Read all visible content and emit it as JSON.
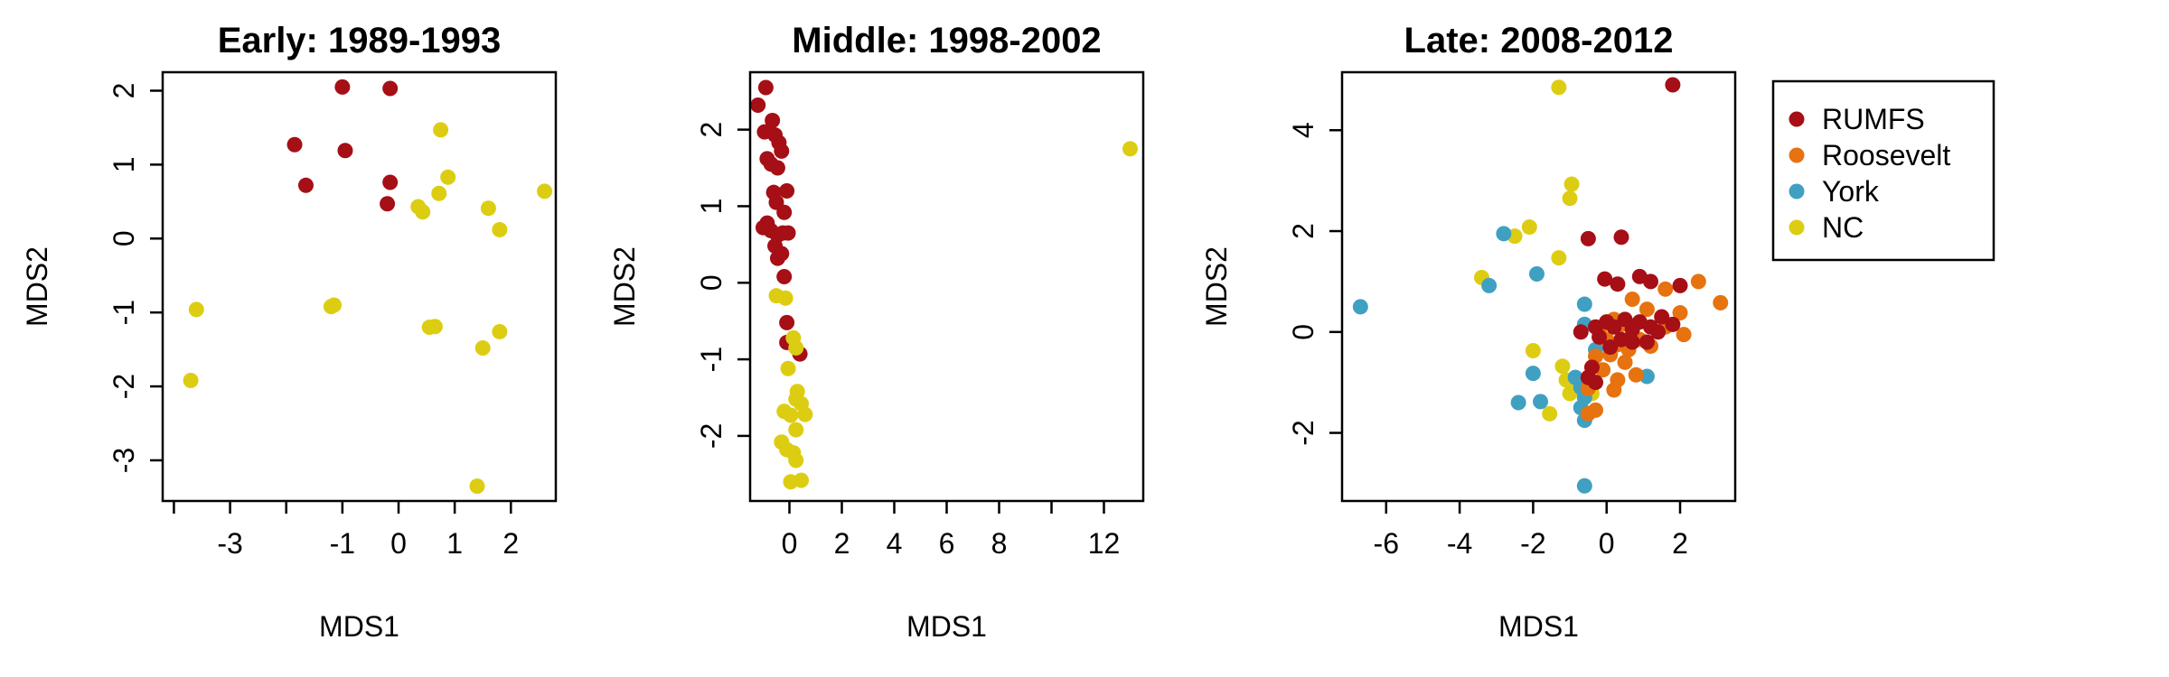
{
  "colors": {
    "RUMFS": "#a50f15",
    "Roosevelt": "#e6730f",
    "York": "#3fa0c2",
    "NC": "#ddcd12"
  },
  "legend": {
    "position": "right of panels",
    "items": [
      {
        "label": "RUMFS",
        "color": "#a50f15"
      },
      {
        "label": "Roosevelt",
        "color": "#e6730f"
      },
      {
        "label": "York",
        "color": "#3fa0c2"
      },
      {
        "label": "NC",
        "color": "#ddcd12"
      }
    ]
  },
  "chart_data": [
    {
      "type": "scatter",
      "title": "Early: 1989-1993",
      "xlabel": "MDS1",
      "ylabel": "MDS2",
      "xlim": [
        -4.2,
        2.8
      ],
      "ylim": [
        -3.55,
        2.25
      ],
      "xticks": [
        -3,
        -1,
        0,
        1,
        2
      ],
      "xtickmarks": [
        -4,
        -3,
        -2,
        -1,
        0,
        1,
        2
      ],
      "yticks": [
        -3,
        -2,
        -1,
        0,
        1,
        2
      ],
      "series": [
        {
          "name": "RUMFS",
          "color": "#a50f15",
          "points": [
            [
              -1.0,
              2.05
            ],
            [
              -0.15,
              2.03
            ],
            [
              -1.85,
              1.27
            ],
            [
              -1.65,
              0.72
            ],
            [
              -0.95,
              1.19
            ],
            [
              -0.15,
              0.76
            ],
            [
              -0.2,
              0.47
            ]
          ]
        },
        {
          "name": "NC",
          "color": "#ddcd12",
          "points": [
            [
              0.75,
              1.47
            ],
            [
              0.88,
              0.83
            ],
            [
              2.6,
              0.64
            ],
            [
              0.72,
              0.61
            ],
            [
              1.6,
              0.41
            ],
            [
              0.35,
              0.43
            ],
            [
              0.43,
              0.36
            ],
            [
              1.8,
              0.12
            ],
            [
              -1.2,
              -0.92
            ],
            [
              -1.15,
              -0.9
            ],
            [
              -3.6,
              -0.96
            ],
            [
              0.55,
              -1.2
            ],
            [
              0.65,
              -1.19
            ],
            [
              1.8,
              -1.26
            ],
            [
              1.5,
              -1.48
            ],
            [
              -3.7,
              -1.92
            ],
            [
              1.4,
              -3.35
            ]
          ]
        }
      ]
    },
    {
      "type": "scatter",
      "title": "Middle: 1998-2002",
      "xlabel": "MDS1",
      "ylabel": "MDS2",
      "xlim": [
        -1.5,
        13.5
      ],
      "ylim": [
        -2.85,
        2.75
      ],
      "xticks": [
        0,
        2,
        4,
        6,
        8,
        12
      ],
      "xtickmarks": [
        0,
        2,
        4,
        6,
        8,
        10,
        12
      ],
      "yticks": [
        -2,
        -1,
        0,
        1,
        2
      ],
      "series": [
        {
          "name": "RUMFS",
          "color": "#a50f15",
          "points": [
            [
              -0.9,
              2.55
            ],
            [
              -1.2,
              2.32
            ],
            [
              -0.65,
              2.12
            ],
            [
              -0.95,
              1.97
            ],
            [
              -0.55,
              1.93
            ],
            [
              -0.4,
              1.83
            ],
            [
              -0.3,
              1.72
            ],
            [
              -0.85,
              1.62
            ],
            [
              -0.7,
              1.55
            ],
            [
              -0.45,
              1.5
            ],
            [
              -0.6,
              1.18
            ],
            [
              -0.1,
              1.2
            ],
            [
              -0.5,
              1.05
            ],
            [
              -0.2,
              0.92
            ],
            [
              -0.85,
              0.78
            ],
            [
              -1.0,
              0.72
            ],
            [
              -0.7,
              0.68
            ],
            [
              -0.45,
              0.62
            ],
            [
              -0.25,
              0.65
            ],
            [
              -0.05,
              0.65
            ],
            [
              -0.55,
              0.48
            ],
            [
              -0.3,
              0.38
            ],
            [
              -0.45,
              0.32
            ],
            [
              -0.2,
              0.08
            ],
            [
              -0.1,
              -0.52
            ],
            [
              -0.1,
              -0.78
            ],
            [
              0.4,
              -0.93
            ]
          ]
        },
        {
          "name": "NC",
          "color": "#ddcd12",
          "points": [
            [
              13.0,
              1.75
            ],
            [
              -0.5,
              -0.17
            ],
            [
              -0.15,
              -0.2
            ],
            [
              0.15,
              -0.72
            ],
            [
              0.25,
              -0.85
            ],
            [
              -0.05,
              -1.12
            ],
            [
              0.3,
              -1.42
            ],
            [
              0.25,
              -1.52
            ],
            [
              0.45,
              -1.58
            ],
            [
              -0.2,
              -1.68
            ],
            [
              0.05,
              -1.73
            ],
            [
              0.6,
              -1.72
            ],
            [
              0.25,
              -1.92
            ],
            [
              -0.3,
              -2.08
            ],
            [
              -0.1,
              -2.18
            ],
            [
              0.15,
              -2.22
            ],
            [
              0.25,
              -2.32
            ],
            [
              0.05,
              -2.6
            ],
            [
              0.45,
              -2.58
            ]
          ]
        }
      ]
    },
    {
      "type": "scatter",
      "title": "Late: 2008-2012",
      "xlabel": "MDS1",
      "ylabel": "MDS2",
      "xlim": [
        -7.2,
        3.5
      ],
      "ylim": [
        -3.35,
        5.15
      ],
      "xticks": [
        -6,
        -4,
        -2,
        0,
        2
      ],
      "xtickmarks": [
        -6,
        -4,
        -2,
        0,
        2
      ],
      "yticks": [
        -2,
        0,
        2,
        4
      ],
      "series": [
        {
          "name": "NC",
          "color": "#ddcd12",
          "points": [
            [
              -1.3,
              4.85
            ],
            [
              -0.95,
              2.93
            ],
            [
              -1.0,
              2.65
            ],
            [
              -2.1,
              2.08
            ],
            [
              -2.5,
              1.9
            ],
            [
              -1.3,
              1.47
            ],
            [
              -3.4,
              1.08
            ],
            [
              -2.0,
              -0.37
            ],
            [
              -1.2,
              -0.68
            ],
            [
              -1.1,
              -0.95
            ],
            [
              -0.9,
              -1.02
            ],
            [
              -0.4,
              -1.22
            ],
            [
              -1.0,
              -1.22
            ],
            [
              -1.55,
              -1.62
            ]
          ]
        },
        {
          "name": "York",
          "color": "#3fa0c2",
          "points": [
            [
              -6.7,
              0.5
            ],
            [
              -2.8,
              1.95
            ],
            [
              -3.2,
              0.92
            ],
            [
              -1.9,
              1.15
            ],
            [
              -0.6,
              0.55
            ],
            [
              -0.6,
              0.15
            ],
            [
              -0.3,
              -0.35
            ],
            [
              -2.0,
              -0.82
            ],
            [
              -0.85,
              -0.9
            ],
            [
              -0.7,
              -1.1
            ],
            [
              -0.6,
              -1.3
            ],
            [
              -2.4,
              -1.4
            ],
            [
              -1.8,
              -1.38
            ],
            [
              -0.7,
              -1.5
            ],
            [
              -0.6,
              -1.75
            ],
            [
              -0.6,
              -3.05
            ],
            [
              1.1,
              -0.88
            ],
            [
              0.2,
              -0.25
            ]
          ]
        },
        {
          "name": "Roosevelt",
          "color": "#e6730f",
          "points": [
            [
              3.1,
              0.58
            ],
            [
              2.5,
              1.0
            ],
            [
              1.6,
              0.85
            ],
            [
              0.7,
              0.65
            ],
            [
              1.1,
              0.45
            ],
            [
              2.0,
              0.38
            ],
            [
              1.6,
              0.1
            ],
            [
              2.1,
              -0.05
            ],
            [
              0.2,
              0.25
            ],
            [
              0.4,
              0.15
            ],
            [
              -0.2,
              0.05
            ],
            [
              0.0,
              -0.15
            ],
            [
              0.3,
              -0.25
            ],
            [
              0.6,
              -0.35
            ],
            [
              0.1,
              -0.45
            ],
            [
              0.9,
              -0.15
            ],
            [
              1.2,
              -0.28
            ],
            [
              -0.3,
              -0.48
            ],
            [
              0.5,
              -0.6
            ],
            [
              -0.1,
              -0.75
            ],
            [
              0.8,
              -0.85
            ],
            [
              0.2,
              -1.15
            ],
            [
              -0.5,
              -1.12
            ],
            [
              -0.3,
              -1.55
            ],
            [
              -0.5,
              -1.62
            ],
            [
              0.3,
              -0.95
            ]
          ]
        },
        {
          "name": "RUMFS",
          "color": "#a50f15",
          "points": [
            [
              1.8,
              4.9
            ],
            [
              -0.5,
              1.85
            ],
            [
              0.4,
              1.88
            ],
            [
              -0.05,
              1.05
            ],
            [
              1.2,
              1.0
            ],
            [
              0.9,
              1.1
            ],
            [
              0.3,
              0.95
            ],
            [
              2.0,
              0.92
            ],
            [
              -0.7,
              0.0
            ],
            [
              -0.3,
              0.1
            ],
            [
              0.0,
              0.2
            ],
            [
              0.2,
              0.1
            ],
            [
              0.5,
              0.25
            ],
            [
              0.7,
              0.05
            ],
            [
              0.9,
              0.2
            ],
            [
              1.2,
              0.1
            ],
            [
              1.5,
              0.3
            ],
            [
              1.8,
              0.15
            ],
            [
              -0.2,
              -0.1
            ],
            [
              0.4,
              -0.15
            ],
            [
              0.7,
              -0.2
            ],
            [
              1.1,
              -0.2
            ],
            [
              1.4,
              0.0
            ],
            [
              0.1,
              -0.3
            ],
            [
              -0.4,
              -0.7
            ],
            [
              -0.5,
              -0.9
            ],
            [
              -0.3,
              -1.0
            ]
          ]
        }
      ]
    }
  ]
}
